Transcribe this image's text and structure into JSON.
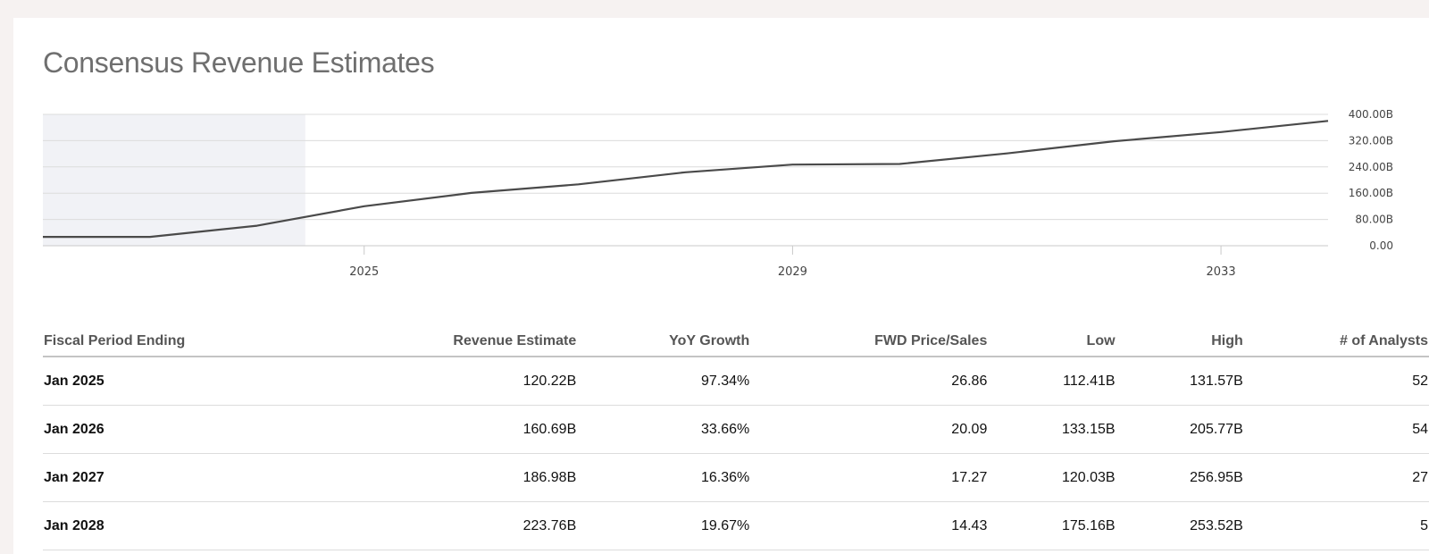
{
  "title": "Consensus Revenue Estimates",
  "chart_data": {
    "type": "line",
    "title": "",
    "xlabel": "",
    "ylabel": "",
    "x_ticks": [
      "2025",
      "2029",
      "2033"
    ],
    "y_ticks": [
      "0.00",
      "80.00B",
      "160.00B",
      "240.00B",
      "320.00B",
      "400.00B"
    ],
    "ylim": [
      0,
      400
    ],
    "y_unit": "B",
    "grid": true,
    "shaded_region": {
      "from": 2022.0,
      "to": 2024.45,
      "meaning": "historical"
    },
    "series": [
      {
        "color": "#4a4a4a",
        "x": [
          2022.0,
          2023.0,
          2024.0,
          2025.0,
          2026.0,
          2027.0,
          2028.0,
          2029.0,
          2030.0,
          2031.0,
          2032.0,
          2033.0,
          2034.0
        ],
        "y": [
          27,
          27,
          61,
          120.22,
          160.69,
          186.98,
          223.76,
          247,
          249,
          281,
          318,
          346,
          380
        ]
      }
    ]
  },
  "table": {
    "headers": [
      "Fiscal Period Ending",
      "Revenue Estimate",
      "YoY Growth",
      "FWD Price/Sales",
      "Low",
      "High",
      "# of Analysts"
    ],
    "rows": [
      [
        "Jan 2025",
        "120.22B",
        "97.34%",
        "26.86",
        "112.41B",
        "131.57B",
        "52"
      ],
      [
        "Jan 2026",
        "160.69B",
        "33.66%",
        "20.09",
        "133.15B",
        "205.77B",
        "54"
      ],
      [
        "Jan 2027",
        "186.98B",
        "16.36%",
        "17.27",
        "120.03B",
        "256.95B",
        "27"
      ],
      [
        "Jan 2028",
        "223.76B",
        "19.67%",
        "14.43",
        "175.16B",
        "253.52B",
        "5"
      ]
    ]
  }
}
